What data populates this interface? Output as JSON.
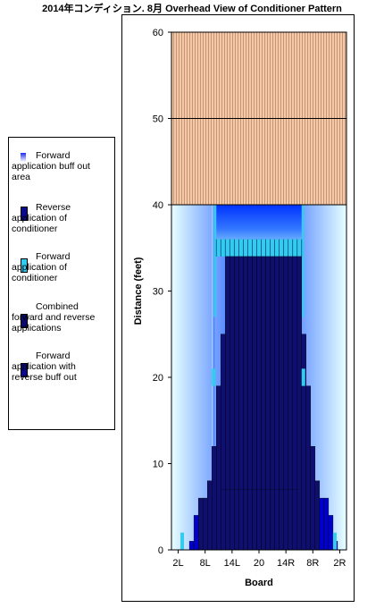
{
  "title": "2014年コンディション.   8月 Overhead View of Conditioner Pattern",
  "legend": {
    "items": [
      {
        "label": "Forward\napplication buff out\narea",
        "color": "#c8d8ff"
      },
      {
        "label": "Reverse\napplication of\nconditioner",
        "color": "#0a0a8a"
      },
      {
        "label": "Forward\napplication of\nconditioner",
        "color": "#33ccee"
      },
      {
        "label": "Combined\nforward and reverse\napplications",
        "color": "#0a0a6a"
      },
      {
        "label": "Forward\napplication with\nreverse buff out",
        "color": "#0a0a8a"
      }
    ]
  },
  "colors": {
    "pin_deck": "#f5c9a8",
    "pin_deck_lines": "#b08060",
    "combined": "#0f0f70",
    "reverse": "#0000cc",
    "forward": "#33ccee",
    "buff_dark": "#0044ff",
    "buff_light": "#e8ffff"
  },
  "chart_data": {
    "type": "heatmap",
    "title": "Overhead View of Conditioner Pattern",
    "xlabel": "Board",
    "ylabel": "Distance (feet)",
    "x_tick_labels": [
      "2L",
      "8L",
      "14L",
      "20",
      "14R",
      "8R",
      "2R"
    ],
    "x_tick_boards": [
      2,
      8,
      14,
      20,
      26,
      32,
      38
    ],
    "y_ticks": [
      0,
      10,
      20,
      30,
      40,
      50,
      60
    ],
    "ylim": [
      0,
      60
    ],
    "boards": 39,
    "pin_deck_range": [
      40,
      60
    ],
    "oil_length_feet": 40,
    "combined_profile_feet": [
      0,
      0,
      0,
      0,
      1,
      4,
      6,
      6,
      8,
      12,
      19,
      25,
      34,
      34,
      34,
      34,
      34,
      34,
      34,
      34,
      34,
      34,
      34,
      34,
      34,
      34,
      34,
      34,
      34,
      25,
      19,
      12,
      8,
      6,
      6,
      4,
      1,
      0,
      0
    ],
    "reverse_length_feet": 36,
    "forward_segment_feet": [
      34,
      36
    ]
  }
}
